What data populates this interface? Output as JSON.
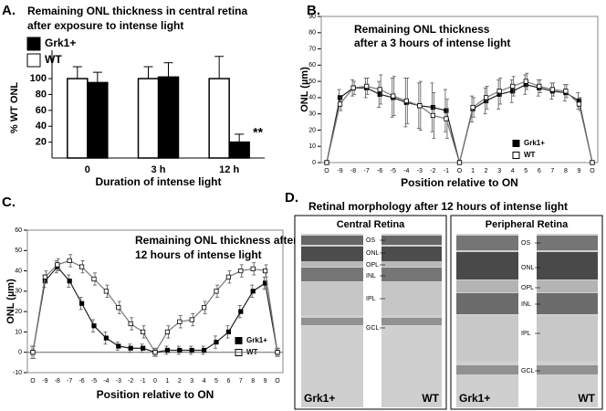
{
  "chart_data": [
    {
      "panel": "A.",
      "type": "bar",
      "title": [
        "Remaining ONL thickness in central retina",
        "after exposure to intense light"
      ],
      "ylabel": "% WT ONL",
      "xlabel": "Duration of intense light",
      "categories": [
        "0",
        "3 h",
        "12 h"
      ],
      "series": [
        {
          "name": "Grk1+",
          "color": "#000000",
          "values": [
            95,
            102,
            20
          ],
          "errors": [
            13,
            18,
            10
          ]
        },
        {
          "name": "WT",
          "color": "#ffffff",
          "values": [
            100,
            100,
            100
          ],
          "errors": [
            15,
            15,
            28
          ]
        }
      ],
      "ylim": [
        0,
        130
      ],
      "yticks": [
        20,
        40,
        60,
        80,
        100
      ],
      "annotation": "**",
      "legend": "upper left"
    },
    {
      "panel": "B.",
      "type": "line",
      "title": [
        "Remaining ONL thickness",
        "after a 3 hours of intense light"
      ],
      "ylabel": "ONL (µm)",
      "xlabel": "Position relative to ON",
      "categories": [
        "O",
        "-9",
        "-8",
        "-7",
        "-6",
        "-5",
        "-4",
        "-3",
        "-2",
        "-1",
        "O",
        "1",
        "2",
        "3",
        "4",
        "5",
        "6",
        "7",
        "8",
        "9",
        "O"
      ],
      "series": [
        {
          "name": "Grk1+",
          "color": "#000000",
          "values": [
            0,
            40,
            46,
            46,
            42,
            40,
            37,
            35,
            34,
            32,
            0,
            33,
            38,
            42,
            44,
            48,
            46,
            44,
            43,
            38,
            0
          ],
          "errors": [
            0,
            5,
            5,
            6,
            8,
            12,
            15,
            14,
            15,
            13,
            0,
            8,
            8,
            9,
            7,
            6,
            5,
            5,
            5,
            5,
            0
          ]
        },
        {
          "name": "WT",
          "color": "#ffffff",
          "values": [
            0,
            36,
            46,
            47,
            45,
            41,
            38,
            35,
            29,
            27,
            0,
            34,
            40,
            44,
            47,
            50,
            47,
            45,
            44,
            36,
            0
          ],
          "errors": [
            0,
            4,
            4,
            5,
            9,
            12,
            14,
            15,
            14,
            12,
            0,
            6,
            7,
            8,
            6,
            5,
            4,
            4,
            4,
            4,
            0
          ]
        }
      ],
      "ylim": [
        0,
        90
      ],
      "yticks": [
        0,
        10,
        20,
        30,
        40,
        50,
        60,
        70,
        80,
        90
      ],
      "legend": "lower right"
    },
    {
      "panel": "C.",
      "type": "line",
      "title": [
        "Remaining ONL thickness after",
        "12 hours of intense light"
      ],
      "ylabel": "ONL (µm)",
      "xlabel": "Position relative to ON",
      "categories": [
        "O",
        "-9",
        "-8",
        "-7",
        "-6",
        "-5",
        "-4",
        "-3",
        "-2",
        "-1",
        "0",
        "1",
        "2",
        "3",
        "4",
        "5",
        "6",
        "7",
        "8",
        "9",
        "O"
      ],
      "series": [
        {
          "name": "Grk1+",
          "color": "#000000",
          "values": [
            0,
            35,
            42,
            35,
            24,
            13,
            7,
            3,
            2,
            2,
            0,
            1,
            1,
            1,
            1,
            5,
            10,
            20,
            30,
            34,
            0
          ],
          "errors": [
            3,
            3,
            3,
            3,
            3,
            3,
            3,
            2,
            2,
            2,
            2,
            2,
            2,
            2,
            2,
            3,
            3,
            3,
            3,
            3,
            2
          ]
        },
        {
          "name": "WT",
          "color": "#ffffff",
          "values": [
            0,
            37,
            43,
            45,
            42,
            36,
            30,
            22,
            14,
            10,
            0,
            10,
            15,
            16,
            22,
            30,
            37,
            40,
            41,
            40,
            0
          ],
          "errors": [
            3,
            3,
            3,
            3,
            3,
            3,
            3,
            3,
            3,
            3,
            2,
            3,
            3,
            3,
            3,
            3,
            3,
            3,
            3,
            3,
            2
          ]
        }
      ],
      "ylim": [
        -10,
        60
      ],
      "yticks": [
        -10,
        0,
        10,
        20,
        30,
        40,
        50,
        60
      ],
      "legend": "lower right"
    }
  ],
  "panel_d": {
    "panel": "D.",
    "title": "Retinal morphology after 12 hours of intense light",
    "images": [
      {
        "title": "Central Retina",
        "layers": [
          "OS",
          "ONL",
          "OPL",
          "INL",
          "IPL",
          "GCL"
        ],
        "left": "Grk1+",
        "right": "WT"
      },
      {
        "title": "Peripheral Retina",
        "layers": [
          "OS",
          "ONL",
          "OPL",
          "INL",
          "IPL",
          "GCL"
        ],
        "left": "Grk1+",
        "right": "WT"
      }
    ]
  }
}
